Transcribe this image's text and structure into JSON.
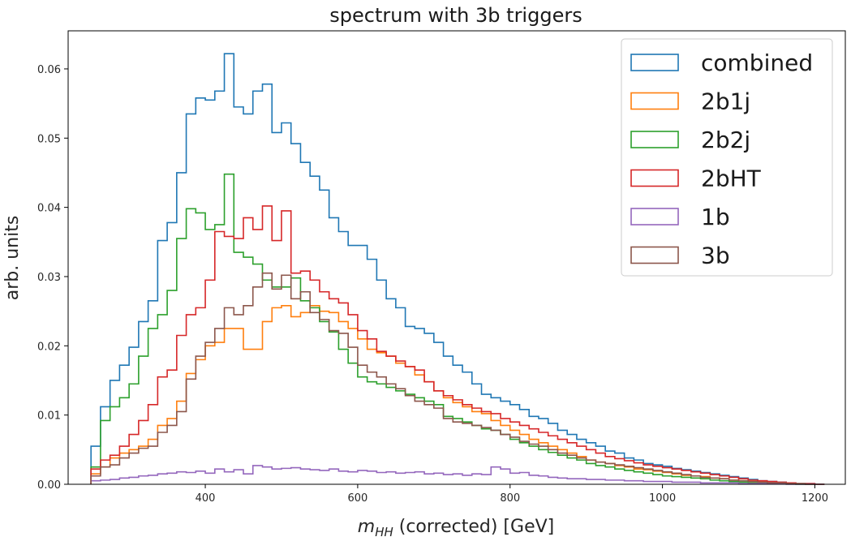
{
  "chart_data": {
    "type": "histogram-step",
    "title": "spectrum with 3b triggers",
    "xlabel_symbol": "m",
    "xlabel_subscript": "HH",
    "xlabel_rest": " (corrected) [GeV]",
    "ylabel": "arb. units",
    "xlim": [
      220,
      1240
    ],
    "ylim": [
      0,
      0.0655
    ],
    "xticks": [
      400,
      600,
      800,
      1000,
      1200
    ],
    "yticks": [
      0.0,
      0.01,
      0.02,
      0.03,
      0.04,
      0.05,
      0.06
    ],
    "ytick_labels": [
      "0.00",
      "0.01",
      "0.02",
      "0.03",
      "0.04",
      "0.05",
      "0.06"
    ],
    "grid": false,
    "legend_position": "upper right",
    "bin_start": 250,
    "bin_width": 12.5,
    "series": [
      {
        "name": "combined",
        "color": "#1f77b4",
        "values": [
          0.0055,
          0.0112,
          0.015,
          0.0172,
          0.0198,
          0.0235,
          0.0265,
          0.0352,
          0.0378,
          0.045,
          0.0535,
          0.0558,
          0.0555,
          0.0568,
          0.0622,
          0.0545,
          0.0535,
          0.0568,
          0.0578,
          0.0508,
          0.0522,
          0.0492,
          0.0465,
          0.0445,
          0.0425,
          0.0385,
          0.0365,
          0.0345,
          0.0345,
          0.0325,
          0.0295,
          0.0268,
          0.0255,
          0.0228,
          0.0225,
          0.0218,
          0.0205,
          0.0185,
          0.0172,
          0.0162,
          0.0145,
          0.013,
          0.0125,
          0.012,
          0.0115,
          0.0108,
          0.0098,
          0.0095,
          0.0088,
          0.0078,
          0.0072,
          0.0065,
          0.006,
          0.0055,
          0.0048,
          0.0045,
          0.0038,
          0.0035,
          0.003,
          0.0028,
          0.0026,
          0.0023,
          0.0021,
          0.0019,
          0.0017,
          0.0015,
          0.0013,
          0.0011,
          0.0009,
          0.0007,
          0.0005,
          0.0004,
          0.0003,
          0.0002,
          0.0001,
          0.0001,
          0.0
        ]
      },
      {
        "name": "2b1j",
        "color": "#ff7f0e",
        "values": [
          0.0015,
          0.0025,
          0.0038,
          0.0045,
          0.005,
          0.0055,
          0.0065,
          0.0085,
          0.0095,
          0.012,
          0.016,
          0.018,
          0.02,
          0.0205,
          0.0225,
          0.0225,
          0.0195,
          0.0195,
          0.0235,
          0.0255,
          0.0258,
          0.0242,
          0.0248,
          0.0258,
          0.025,
          0.0248,
          0.0235,
          0.0225,
          0.021,
          0.0195,
          0.019,
          0.0185,
          0.0175,
          0.017,
          0.0158,
          0.0148,
          0.0135,
          0.0125,
          0.0118,
          0.0112,
          0.0105,
          0.0102,
          0.0092,
          0.0085,
          0.0078,
          0.0072,
          0.0065,
          0.006,
          0.0055,
          0.005,
          0.0045,
          0.004,
          0.0035,
          0.0032,
          0.003,
          0.0027,
          0.0025,
          0.0022,
          0.0021,
          0.0019,
          0.0017,
          0.0015,
          0.0013,
          0.0012,
          0.0011,
          0.0009,
          0.0008,
          0.0006,
          0.0005,
          0.0004,
          0.0003,
          0.0002,
          0.0001,
          0.0001,
          0.0001,
          0.0,
          0.0
        ]
      },
      {
        "name": "2b2j",
        "color": "#2ca02c",
        "values": [
          0.0025,
          0.0092,
          0.0112,
          0.0125,
          0.0145,
          0.0185,
          0.0225,
          0.0245,
          0.028,
          0.0355,
          0.0398,
          0.0392,
          0.0368,
          0.0375,
          0.0448,
          0.0335,
          0.0328,
          0.0318,
          0.0295,
          0.0285,
          0.0285,
          0.0298,
          0.0265,
          0.0255,
          0.0235,
          0.022,
          0.0195,
          0.0175,
          0.0155,
          0.0148,
          0.0145,
          0.014,
          0.0135,
          0.013,
          0.0125,
          0.012,
          0.0115,
          0.0098,
          0.0095,
          0.009,
          0.0085,
          0.008,
          0.0078,
          0.0072,
          0.0065,
          0.006,
          0.0055,
          0.005,
          0.0046,
          0.0042,
          0.0038,
          0.0035,
          0.003,
          0.0027,
          0.0025,
          0.0022,
          0.002,
          0.0018,
          0.0016,
          0.0014,
          0.0012,
          0.0011,
          0.001,
          0.0009,
          0.0008,
          0.0006,
          0.0005,
          0.0004,
          0.0003,
          0.0002,
          0.0002,
          0.0001,
          0.0001,
          0.0001,
          0.0,
          0.0,
          0.0
        ]
      },
      {
        "name": "2bHT",
        "color": "#d62728",
        "values": [
          0.0022,
          0.0035,
          0.0042,
          0.0055,
          0.0072,
          0.0092,
          0.0115,
          0.0155,
          0.0165,
          0.0215,
          0.0245,
          0.0255,
          0.0295,
          0.0365,
          0.0358,
          0.0355,
          0.0385,
          0.0368,
          0.0402,
          0.0352,
          0.0395,
          0.0305,
          0.0308,
          0.0295,
          0.0278,
          0.0268,
          0.0262,
          0.0245,
          0.0222,
          0.021,
          0.0192,
          0.0185,
          0.0178,
          0.017,
          0.0165,
          0.0148,
          0.0135,
          0.0128,
          0.0122,
          0.0115,
          0.011,
          0.0105,
          0.0102,
          0.0095,
          0.009,
          0.0085,
          0.008,
          0.0075,
          0.007,
          0.0065,
          0.006,
          0.0055,
          0.005,
          0.0045,
          0.004,
          0.0037,
          0.0034,
          0.0031,
          0.0028,
          0.0026,
          0.0024,
          0.0022,
          0.002,
          0.0018,
          0.0016,
          0.0014,
          0.0012,
          0.001,
          0.0008,
          0.0006,
          0.0005,
          0.0004,
          0.0003,
          0.0002,
          0.0001,
          0.0001,
          0.0
        ]
      },
      {
        "name": "1b",
        "color": "#9467bd",
        "values": [
          0.0005,
          0.0006,
          0.0007,
          0.0009,
          0.001,
          0.0012,
          0.0013,
          0.0015,
          0.0016,
          0.0018,
          0.0017,
          0.0019,
          0.0016,
          0.0022,
          0.0018,
          0.0021,
          0.0015,
          0.0027,
          0.0025,
          0.0022,
          0.0023,
          0.0024,
          0.0022,
          0.0021,
          0.002,
          0.0022,
          0.0019,
          0.0018,
          0.002,
          0.0019,
          0.0017,
          0.0018,
          0.0016,
          0.0017,
          0.0018,
          0.0015,
          0.0016,
          0.0014,
          0.0015,
          0.0013,
          0.0015,
          0.0014,
          0.0025,
          0.0022,
          0.0016,
          0.0017,
          0.0013,
          0.0012,
          0.001,
          0.0009,
          0.0008,
          0.0008,
          0.0007,
          0.0007,
          0.0006,
          0.0006,
          0.0005,
          0.0005,
          0.0004,
          0.0004,
          0.0004,
          0.0003,
          0.0003,
          0.0003,
          0.0002,
          0.0002,
          0.0002,
          0.0002,
          0.0001,
          0.0001,
          0.0001,
          0.0001,
          0.0001,
          0.0,
          0.0,
          0.0,
          0.0
        ]
      },
      {
        "name": "3b",
        "color": "#8c564b",
        "values": [
          0.0012,
          0.0025,
          0.0028,
          0.0038,
          0.0045,
          0.0052,
          0.0055,
          0.0075,
          0.0085,
          0.0105,
          0.0152,
          0.0185,
          0.0205,
          0.0225,
          0.0255,
          0.0245,
          0.0258,
          0.0285,
          0.0305,
          0.0282,
          0.0302,
          0.0268,
          0.0278,
          0.0248,
          0.0238,
          0.0222,
          0.0218,
          0.0198,
          0.0172,
          0.0162,
          0.0155,
          0.0145,
          0.0138,
          0.0128,
          0.012,
          0.0115,
          0.011,
          0.0095,
          0.009,
          0.0088,
          0.0085,
          0.0082,
          0.0078,
          0.0072,
          0.0068,
          0.0062,
          0.0058,
          0.0055,
          0.005,
          0.0045,
          0.0042,
          0.0038,
          0.0035,
          0.0032,
          0.003,
          0.0028,
          0.0026,
          0.0024,
          0.0022,
          0.002,
          0.0018,
          0.0016,
          0.0014,
          0.0012,
          0.001,
          0.0009,
          0.0008,
          0.0006,
          0.0005,
          0.0004,
          0.0003,
          0.0002,
          0.0002,
          0.0001,
          0.0001,
          0.0,
          0.0
        ]
      }
    ]
  }
}
